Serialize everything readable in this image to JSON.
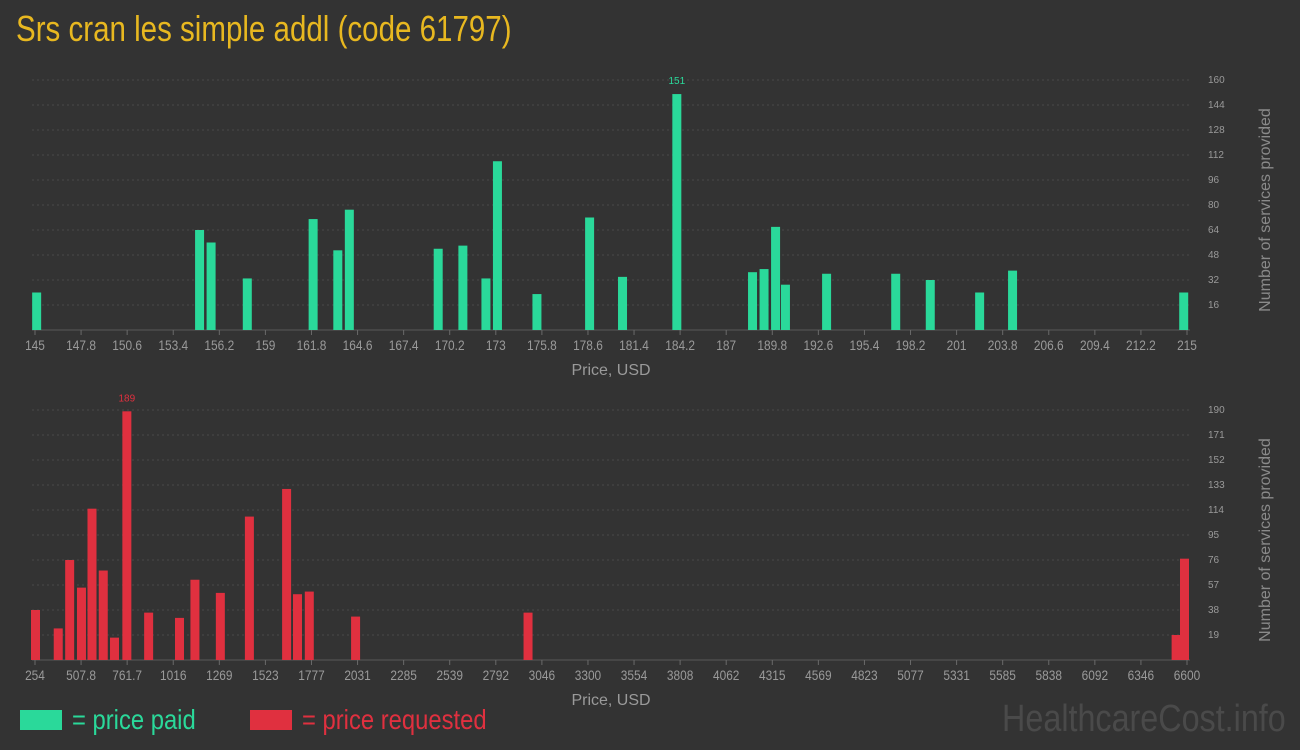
{
  "title": "Srs cran les simple addl (code 61797)",
  "colors": {
    "paid": "#2ad99a",
    "requested": "#e0303f",
    "title": "#e8b820",
    "axis_text": "#9a9a9a",
    "grid": "#4a4a4a"
  },
  "chart_data": [
    {
      "type": "bar",
      "xlabel": "Price, USD",
      "ylabel": "Number of services provided",
      "xlim": [
        145,
        215
      ],
      "ylim": [
        0,
        160
      ],
      "x_ticks": [
        "145",
        "147.8",
        "150.6",
        "153.4",
        "156.2",
        "159",
        "161.8",
        "164.6",
        "167.4",
        "170.2",
        "173",
        "175.8",
        "178.6",
        "181.4",
        "184.2",
        "187",
        "189.8",
        "192.6",
        "195.4",
        "198.2",
        "201",
        "203.8",
        "206.6",
        "209.4",
        "212.2",
        "215"
      ],
      "y_ticks": [
        16,
        32,
        48,
        64,
        80,
        96,
        112,
        128,
        144,
        160
      ],
      "peak_label": "151",
      "series": [
        {
          "x": [
            145.1,
            155.0,
            155.7,
            157.9,
            161.9,
            163.4,
            164.1,
            169.5,
            171.0,
            172.4,
            173.1,
            175.5,
            178.7,
            180.7,
            184.0,
            188.6,
            189.3,
            190.0,
            190.6,
            193.1,
            197.3,
            199.4,
            202.4,
            204.4,
            214.8
          ],
          "values": [
            24,
            64,
            56,
            33,
            71,
            51,
            77,
            52,
            54,
            33,
            108,
            23,
            72,
            34,
            151,
            37,
            39,
            66,
            29,
            36,
            36,
            32,
            24,
            38,
            24
          ]
        }
      ]
    },
    {
      "type": "bar",
      "xlabel": "Price, USD",
      "ylabel": "Number of services provided",
      "xlim": [
        254,
        6600
      ],
      "ylim": [
        0,
        190
      ],
      "x_ticks": [
        "254",
        "507.8",
        "761.7",
        "1016",
        "1269",
        "1523",
        "1777",
        "2031",
        "2285",
        "2539",
        "2792",
        "3046",
        "3300",
        "3554",
        "3808",
        "4062",
        "4315",
        "4569",
        "4823",
        "5077",
        "5331",
        "5585",
        "5838",
        "6092",
        "6346",
        "6600"
      ],
      "y_ticks": [
        19,
        38,
        57,
        76,
        95,
        114,
        133,
        152,
        171,
        190
      ],
      "peak_label": "189",
      "series": [
        {
          "x": [
            254,
            382,
            445,
            510,
            568,
            630,
            692,
            760,
            880,
            1050,
            1135,
            1275,
            1435,
            1640,
            1700,
            1765,
            2020,
            2970,
            6540,
            6600
          ],
          "values": [
            38,
            24,
            76,
            55,
            115,
            68,
            17,
            189,
            36,
            32,
            61,
            51,
            109,
            130,
            50,
            52,
            33,
            36,
            19,
            77
          ]
        }
      ]
    }
  ],
  "legend": {
    "paid": "= price paid",
    "requested": "= price requested"
  },
  "watermark": "HealthcareCost.info"
}
